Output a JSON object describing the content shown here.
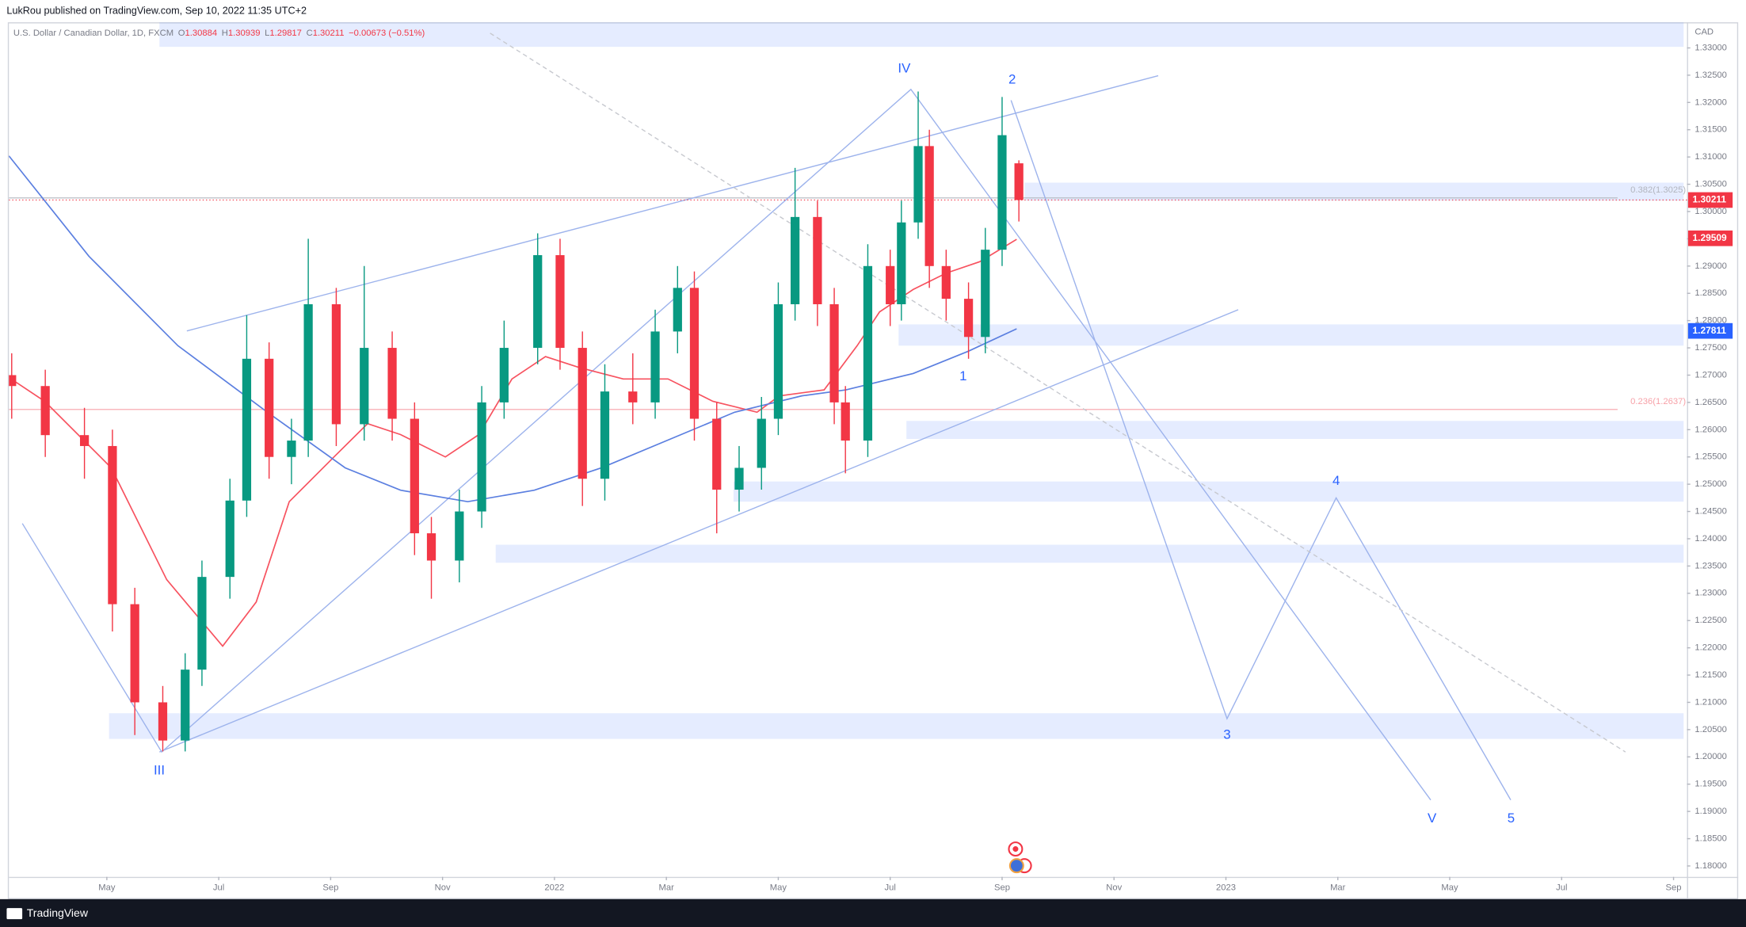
{
  "header": {
    "publisher": "LukRou published on TradingView.com, Sep 10, 2022 11:35 UTC+2"
  },
  "footer": {
    "brand": "TradingView"
  },
  "chart_data": {
    "type": "candlestick",
    "symbol": "U.S. Dollar / Canadian Dollar, 1D, FXCM",
    "ohlc_legend": [
      {
        "key": "O",
        "value": "1.30884"
      },
      {
        "key": "H",
        "value": "1.30939"
      },
      {
        "key": "L",
        "value": "1.29817"
      },
      {
        "key": "C",
        "value": "1.30211"
      }
    ],
    "change": "−0.00673 (−0.51%)",
    "currency": "CAD",
    "up_color": "#089981",
    "down_color": "#f23645",
    "x": [
      2.3,
      2.9,
      3.6,
      4.1,
      4.5,
      5.0,
      5.4,
      5.7,
      6.2,
      6.5,
      6.9,
      7.3,
      7.6,
      8.1,
      8.6,
      9.1,
      9.5,
      9.8,
      10.3,
      10.7,
      11.1,
      11.7,
      12.1,
      12.5,
      12.9,
      13.4,
      13.8,
      14.2,
      14.5,
      14.9,
      15.3,
      15.7,
      16.0,
      16.3,
      16.7,
      17.0,
      17.2,
      17.6,
      18.0,
      18.2,
      18.5,
      18.7,
      19.0,
      19.4,
      19.7,
      20.0,
      20.3
    ],
    "open": [
      1.27,
      1.268,
      1.259,
      1.257,
      1.228,
      1.21,
      1.203,
      1.216,
      1.233,
      1.247,
      1.273,
      1.255,
      1.258,
      1.283,
      1.261,
      1.275,
      1.262,
      1.241,
      1.236,
      1.245,
      1.265,
      1.275,
      1.292,
      1.275,
      1.251,
      1.267,
      1.265,
      1.278,
      1.286,
      1.262,
      1.249,
      1.253,
      1.262,
      1.283,
      1.299,
      1.283,
      1.265,
      1.258,
      1.29,
      1.283,
      1.298,
      1.312,
      1.29,
      1.284,
      1.277,
      1.293,
      1.30884
    ],
    "high": [
      1.274,
      1.271,
      1.264,
      1.26,
      1.231,
      1.213,
      1.219,
      1.236,
      1.251,
      1.281,
      1.276,
      1.262,
      1.295,
      1.286,
      1.29,
      1.278,
      1.265,
      1.244,
      1.249,
      1.268,
      1.28,
      1.296,
      1.295,
      1.278,
      1.272,
      1.274,
      1.282,
      1.29,
      1.289,
      1.265,
      1.257,
      1.266,
      1.287,
      1.308,
      1.302,
      1.286,
      1.268,
      1.294,
      1.293,
      1.302,
      1.322,
      1.315,
      1.293,
      1.287,
      1.297,
      1.321,
      1.30939
    ],
    "low": [
      1.262,
      1.255,
      1.251,
      1.223,
      1.204,
      1.201,
      1.201,
      1.213,
      1.229,
      1.244,
      1.251,
      1.25,
      1.255,
      1.257,
      1.258,
      1.258,
      1.237,
      1.229,
      1.232,
      1.242,
      1.262,
      1.272,
      1.271,
      1.246,
      1.247,
      1.261,
      1.262,
      1.274,
      1.258,
      1.241,
      1.245,
      1.249,
      1.259,
      1.28,
      1.279,
      1.261,
      1.252,
      1.255,
      1.279,
      1.28,
      1.295,
      1.286,
      1.28,
      1.273,
      1.274,
      1.29,
      1.29817
    ],
    "close": [
      1.268,
      1.259,
      1.257,
      1.228,
      1.21,
      1.203,
      1.216,
      1.233,
      1.247,
      1.273,
      1.255,
      1.258,
      1.283,
      1.261,
      1.275,
      1.262,
      1.241,
      1.236,
      1.245,
      1.265,
      1.275,
      1.292,
      1.275,
      1.251,
      1.267,
      1.265,
      1.278,
      1.286,
      1.262,
      1.249,
      1.253,
      1.262,
      1.283,
      1.299,
      1.283,
      1.265,
      1.258,
      1.29,
      1.283,
      1.298,
      1.312,
      1.29,
      1.284,
      1.277,
      1.293,
      1.314,
      1.30211
    ],
    "overlays": [
      {
        "color": "#f7525f",
        "x": [
          2.29,
          2.89,
          4.08,
          5.07,
          6.07,
          6.67,
          7.26,
          8.06,
          8.66,
          9.25,
          10.05,
          10.65,
          11.24,
          11.84,
          12.44,
          13.23,
          14.03,
          14.83,
          15.62,
          16.02,
          16.82,
          17.41,
          17.81,
          18.41,
          19.0,
          19.6,
          20.26
        ],
        "values": [
          1.2693,
          1.2652,
          1.253,
          1.2325,
          1.2203,
          1.2284,
          1.2468,
          1.255,
          1.2611,
          1.2591,
          1.255,
          1.2591,
          1.2693,
          1.2734,
          1.2714,
          1.2693,
          1.2693,
          1.2652,
          1.2632,
          1.2662,
          1.2673,
          1.2754,
          1.2816,
          1.2857,
          1.2887,
          1.2908,
          1.2949
        ]
      },
      {
        "color": "#5b7fe0",
        "x": [
          2.25,
          3.68,
          5.27,
          6.87,
          8.26,
          9.25,
          10.45,
          11.64,
          12.84,
          14.03,
          15.22,
          16.42,
          17.21,
          18.41,
          19.4,
          20.26
        ],
        "values": [
          1.3102,
          1.2918,
          1.2754,
          1.2632,
          1.253,
          1.2489,
          1.2468,
          1.2489,
          1.253,
          1.2581,
          1.2632,
          1.2662,
          1.2673,
          1.2703,
          1.2744,
          1.2785
        ]
      }
    ],
    "price_labels": [
      {
        "value": 1.30211,
        "color": "#f23645"
      },
      {
        "value": 1.29509,
        "color": "#f23645"
      },
      {
        "value": 1.27811,
        "color": "#2962ff"
      }
    ],
    "fib_levels": [
      {
        "label": "0.382(1.3025)",
        "value": 1.3025,
        "color": "#b2b5be"
      },
      {
        "label": "0.236(1.2637)",
        "value": 1.2637,
        "color": "#f7a1a8"
      }
    ],
    "zones": [
      {
        "x": [
          4.94,
          32.18
        ],
        "y": [
          1.3302,
          1.3347
        ]
      },
      {
        "x": [
          20.4,
          32.18
        ],
        "y": [
          1.302,
          1.3053
        ]
      },
      {
        "x": [
          18.15,
          32.18
        ],
        "y": [
          1.2754,
          1.2793
        ]
      },
      {
        "x": [
          18.29,
          32.18
        ],
        "y": [
          1.2583,
          1.2616
        ]
      },
      {
        "x": [
          15.2,
          32.18
        ],
        "y": [
          1.2468,
          1.2505
        ]
      },
      {
        "x": [
          10.95,
          32.18
        ],
        "y": [
          1.2356,
          1.2389
        ]
      },
      {
        "x": [
          4.04,
          32.18
        ],
        "y": [
          1.2033,
          1.208
        ]
      }
    ],
    "lines": [
      {
        "x": [
          5.43,
          22.79
        ],
        "y": [
          1.2781,
          1.3249
        ],
        "dash": false
      },
      {
        "x": [
          4.94,
          24.22
        ],
        "y": [
          1.2009,
          1.282
        ],
        "dash": false
      },
      {
        "x": [
          2.49,
          4.98,
          18.37,
          27.66
        ],
        "y": [
          1.2428,
          1.2009,
          1.3224,
          1.1921
        ],
        "dash": false
      },
      {
        "x": [
          20.16,
          24.02,
          25.97,
          29.09
        ],
        "y": [
          1.3204,
          1.207,
          1.2475,
          1.1921
        ],
        "dash": false
      },
      {
        "x": [
          10.85,
          31.14
        ],
        "y": [
          1.3327,
          1.2009
        ],
        "dash": true
      }
    ],
    "wave_labels": [
      "IV",
      "2",
      "1",
      "III",
      "3",
      "4",
      "V",
      "5"
    ],
    "xlim": [
      2.25,
      32.24
    ],
    "xticks": [
      {
        "value": 4,
        "label": "May"
      },
      {
        "value": 6,
        "label": "Jul"
      },
      {
        "value": 8,
        "label": "Sep"
      },
      {
        "value": 10,
        "label": "Nov"
      },
      {
        "value": 12,
        "label": "2022"
      },
      {
        "value": 14,
        "label": "Mar"
      },
      {
        "value": 16,
        "label": "May"
      },
      {
        "value": 18,
        "label": "Jul"
      },
      {
        "value": 20,
        "label": "Sep"
      },
      {
        "value": 22,
        "label": "Nov"
      },
      {
        "value": 24,
        "label": "2023"
      },
      {
        "value": 26,
        "label": "Mar"
      },
      {
        "value": 28,
        "label": "May"
      },
      {
        "value": 30,
        "label": "Jul"
      },
      {
        "value": 32,
        "label": "Sep"
      }
    ],
    "ylim": [
      1.178,
      1.3347
    ],
    "yticks": [
      {
        "value": 1.18,
        "label": "1.18000"
      },
      {
        "value": 1.185,
        "label": "1.18500"
      },
      {
        "value": 1.19,
        "label": "1.19000"
      },
      {
        "value": 1.195,
        "label": "1.19500"
      },
      {
        "value": 1.2,
        "label": "1.20000"
      },
      {
        "value": 1.205,
        "label": "1.20500"
      },
      {
        "value": 1.21,
        "label": "1.21000"
      },
      {
        "value": 1.215,
        "label": "1.21500"
      },
      {
        "value": 1.22,
        "label": "1.22000"
      },
      {
        "value": 1.225,
        "label": "1.22500"
      },
      {
        "value": 1.23,
        "label": "1.23000"
      },
      {
        "value": 1.235,
        "label": "1.23500"
      },
      {
        "value": 1.24,
        "label": "1.24000"
      },
      {
        "value": 1.245,
        "label": "1.24500"
      },
      {
        "value": 1.25,
        "label": "1.25000"
      },
      {
        "value": 1.255,
        "label": "1.25500"
      },
      {
        "value": 1.26,
        "label": "1.26000"
      },
      {
        "value": 1.265,
        "label": "1.26500"
      },
      {
        "value": 1.27,
        "label": "1.27000"
      },
      {
        "value": 1.275,
        "label": "1.27500"
      },
      {
        "value": 1.28,
        "label": "1.28000"
      },
      {
        "value": 1.285,
        "label": "1.28500"
      },
      {
        "value": 1.29,
        "label": "1.29000"
      },
      {
        "value": 1.295,
        "label": "1.29500"
      },
      {
        "value": 1.3,
        "label": "1.30000"
      },
      {
        "value": 1.305,
        "label": "1.30500"
      },
      {
        "value": 1.31,
        "label": "1.31000"
      },
      {
        "value": 1.315,
        "label": "1.31500"
      },
      {
        "value": 1.32,
        "label": "1.32000"
      },
      {
        "value": 1.325,
        "label": "1.32500"
      },
      {
        "value": 1.33,
        "label": "1.33000"
      }
    ],
    "grid": false
  }
}
